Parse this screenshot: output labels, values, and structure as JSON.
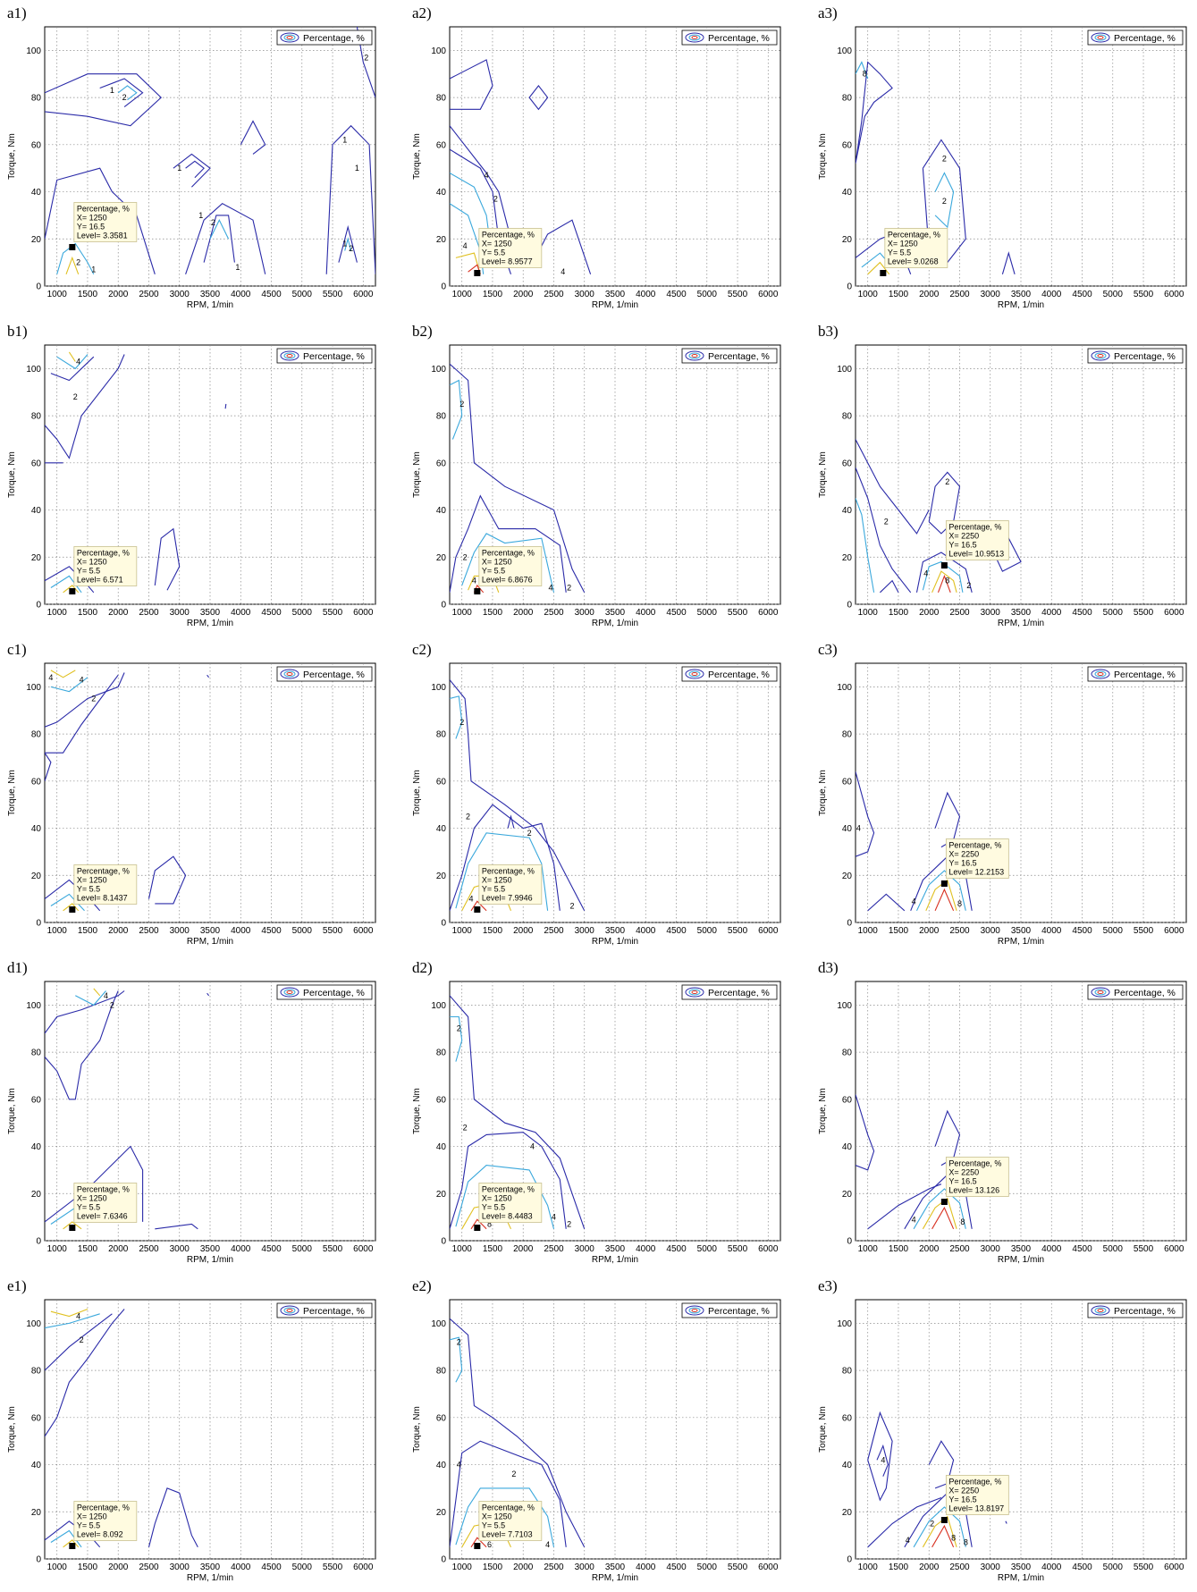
{
  "chart_data": [
    {
      "label": "a1)",
      "type": "contour",
      "legend": "Percentage, %",
      "xlabel": "RPM, 1/min",
      "ylabel": "Torque, Nm",
      "xlim": [
        800,
        6200
      ],
      "ylim": [
        0,
        110
      ],
      "xticks": [
        "1000",
        "1500",
        "2000",
        "2500",
        "3000",
        "3500",
        "4000",
        "4500",
        "5000",
        "5500",
        "6000"
      ],
      "yticks": [
        "0",
        "20",
        "40",
        "60",
        "80",
        "100"
      ],
      "datatip": {
        "title": "Percentage, %",
        "x": "X= 1250",
        "y": "Y= 16.5",
        "level": "Level= 3.3581",
        "xv": 1250,
        "yv": 16.5
      },
      "contour_labels": [
        {
          "t": "1",
          "x": 1900,
          "y": 83
        },
        {
          "t": "2",
          "x": 2100,
          "y": 80
        },
        {
          "t": "1",
          "x": 3000,
          "y": 50
        },
        {
          "t": "2",
          "x": 3550,
          "y": 27
        },
        {
          "t": "1",
          "x": 3350,
          "y": 30
        },
        {
          "t": "1",
          "x": 3950,
          "y": 8
        },
        {
          "t": "1",
          "x": 5700,
          "y": 62
        },
        {
          "t": "1",
          "x": 5900,
          "y": 50
        },
        {
          "t": "1",
          "x": 5700,
          "y": 18
        },
        {
          "t": "2",
          "x": 5800,
          "y": 16
        },
        {
          "t": "2",
          "x": 1350,
          "y": 10
        },
        {
          "t": "1",
          "x": 1600,
          "y": 7
        },
        {
          "t": "2",
          "x": 6050,
          "y": 97
        }
      ]
    },
    {
      "label": "a2)",
      "type": "contour",
      "legend": "Percentage, %",
      "xlabel": "RPM, 1/min",
      "ylabel": "Torque, Nm",
      "xlim": [
        800,
        6200
      ],
      "ylim": [
        0,
        110
      ],
      "xticks": [
        "1000",
        "1500",
        "2000",
        "2500",
        "3000",
        "3500",
        "4000",
        "4500",
        "5000",
        "5500",
        "6000"
      ],
      "yticks": [
        "0",
        "20",
        "40",
        "60",
        "80",
        "100"
      ],
      "datatip": {
        "title": "Percentage, %",
        "x": "X= 1250",
        "y": "Y= 5.5",
        "level": "Level= 8.9577",
        "xv": 1250,
        "yv": 5.5
      },
      "contour_labels": [
        {
          "t": "4",
          "x": 1400,
          "y": 47
        },
        {
          "t": "2",
          "x": 1550,
          "y": 37
        },
        {
          "t": "4",
          "x": 1050,
          "y": 17
        },
        {
          "t": "4",
          "x": 2650,
          "y": 6
        }
      ]
    },
    {
      "label": "a3)",
      "type": "contour",
      "legend": "Percentage, %",
      "xlabel": "RPM, 1/min",
      "ylabel": "Torque, Nm",
      "xlim": [
        800,
        6200
      ],
      "ylim": [
        0,
        110
      ],
      "xticks": [
        "1000",
        "1500",
        "2000",
        "2500",
        "3000",
        "3500",
        "4000",
        "4500",
        "5000",
        "5500",
        "6000"
      ],
      "yticks": [
        "0",
        "20",
        "40",
        "60",
        "80",
        "100"
      ],
      "datatip": {
        "title": "Percentage, %",
        "x": "X= 1250",
        "y": "Y= 5.5",
        "level": "Level= 9.0268",
        "xv": 1250,
        "yv": 5.5
      },
      "contour_labels": [
        {
          "t": "8",
          "x": 950,
          "y": 90
        },
        {
          "t": "2",
          "x": 2250,
          "y": 54
        },
        {
          "t": "2",
          "x": 2250,
          "y": 36
        }
      ]
    },
    {
      "label": "b1)",
      "type": "contour",
      "legend": "Percentage, %",
      "xlabel": "RPM, 1/min",
      "ylabel": "Torque, Nm",
      "xlim": [
        800,
        6200
      ],
      "ylim": [
        0,
        110
      ],
      "xticks": [
        "1000",
        "1500",
        "2000",
        "2500",
        "3000",
        "3500",
        "4000",
        "4500",
        "5000",
        "5500",
        "6000"
      ],
      "yticks": [
        "0",
        "20",
        "40",
        "60",
        "80",
        "100"
      ],
      "datatip": {
        "title": "Percentage, %",
        "x": "X= 1250",
        "y": "Y= 5.5",
        "level": "Level= 6.571",
        "xv": 1250,
        "yv": 5.5
      },
      "contour_labels": [
        {
          "t": "4",
          "x": 1350,
          "y": 103
        },
        {
          "t": "2",
          "x": 1300,
          "y": 88
        }
      ]
    },
    {
      "label": "b2)",
      "type": "contour",
      "legend": "Percentage, %",
      "xlabel": "RPM, 1/min",
      "ylabel": "Torque, Nm",
      "xlim": [
        800,
        6200
      ],
      "ylim": [
        0,
        110
      ],
      "xticks": [
        "1000",
        "1500",
        "2000",
        "2500",
        "3000",
        "3500",
        "4000",
        "4500",
        "5000",
        "5500",
        "6000"
      ],
      "yticks": [
        "0",
        "20",
        "40",
        "60",
        "80",
        "100"
      ],
      "datatip": {
        "title": "Percentage, %",
        "x": "X= 1250",
        "y": "Y= 5.5",
        "level": "Level= 6.8676",
        "xv": 1250,
        "yv": 5.5
      },
      "contour_labels": [
        {
          "t": "2",
          "x": 1000,
          "y": 85
        },
        {
          "t": "2",
          "x": 1050,
          "y": 20
        },
        {
          "t": "4",
          "x": 1200,
          "y": 10
        },
        {
          "t": "4",
          "x": 2450,
          "y": 7
        },
        {
          "t": "2",
          "x": 2750,
          "y": 7
        }
      ]
    },
    {
      "label": "b3)",
      "type": "contour",
      "legend": "Percentage, %",
      "xlabel": "RPM, 1/min",
      "ylabel": "Torque, Nm",
      "xlim": [
        800,
        6200
      ],
      "ylim": [
        0,
        110
      ],
      "xticks": [
        "1000",
        "1500",
        "2000",
        "2500",
        "3000",
        "3500",
        "4000",
        "4500",
        "5000",
        "5500",
        "6000"
      ],
      "yticks": [
        "0",
        "20",
        "40",
        "60",
        "80",
        "100"
      ],
      "datatip": {
        "title": "Percentage, %",
        "x": "X= 2250",
        "y": "Y= 16.5",
        "level": "Level= 10.9513",
        "xv": 2250,
        "yv": 16.5
      },
      "contour_labels": [
        {
          "t": "2",
          "x": 1300,
          "y": 35
        },
        {
          "t": "2",
          "x": 2300,
          "y": 52
        },
        {
          "t": "4",
          "x": 1950,
          "y": 13
        },
        {
          "t": "8",
          "x": 2300,
          "y": 10
        },
        {
          "t": "2",
          "x": 2650,
          "y": 8
        }
      ]
    },
    {
      "label": "c1)",
      "type": "contour",
      "legend": "Percentage, %",
      "xlabel": "RPM, 1/min",
      "ylabel": "Torque, Nm",
      "xlim": [
        800,
        6200
      ],
      "ylim": [
        0,
        110
      ],
      "xticks": [
        "1000",
        "1500",
        "2000",
        "2500",
        "3000",
        "3500",
        "4000",
        "4500",
        "5000",
        "5500",
        "6000"
      ],
      "yticks": [
        "0",
        "20",
        "40",
        "60",
        "80",
        "100"
      ],
      "datatip": {
        "title": "Percentage, %",
        "x": "X= 1250",
        "y": "Y= 5.5",
        "level": "Level= 8.1437",
        "xv": 1250,
        "yv": 5.5
      },
      "contour_labels": [
        {
          "t": "4",
          "x": 1400,
          "y": 103
        },
        {
          "t": "2",
          "x": 1600,
          "y": 95
        },
        {
          "t": "4",
          "x": 900,
          "y": 104
        }
      ]
    },
    {
      "label": "c2)",
      "type": "contour",
      "legend": "Percentage, %",
      "xlabel": "RPM, 1/min",
      "ylabel": "Torque, Nm",
      "xlim": [
        800,
        6200
      ],
      "ylim": [
        0,
        110
      ],
      "xticks": [
        "1000",
        "1500",
        "2000",
        "2500",
        "3000",
        "3500",
        "4000",
        "4500",
        "5000",
        "5500",
        "6000"
      ],
      "yticks": [
        "0",
        "20",
        "40",
        "60",
        "80",
        "100"
      ],
      "datatip": {
        "title": "Percentage, %",
        "x": "X= 1250",
        "y": "Y= 5.5",
        "level": "Level= 7.9946",
        "xv": 1250,
        "yv": 5.5
      },
      "contour_labels": [
        {
          "t": "2",
          "x": 1000,
          "y": 85
        },
        {
          "t": "2",
          "x": 1100,
          "y": 45
        },
        {
          "t": "2",
          "x": 2100,
          "y": 38
        },
        {
          "t": "4",
          "x": 1150,
          "y": 10
        },
        {
          "t": "2",
          "x": 2800,
          "y": 7
        }
      ]
    },
    {
      "label": "c3)",
      "type": "contour",
      "legend": "Percentage, %",
      "xlabel": "RPM, 1/min",
      "ylabel": "Torque, Nm",
      "xlim": [
        800,
        6200
      ],
      "ylim": [
        0,
        110
      ],
      "xticks": [
        "1000",
        "1500",
        "2000",
        "2500",
        "3000",
        "3500",
        "4000",
        "4500",
        "5000",
        "5500",
        "6000"
      ],
      "yticks": [
        "0",
        "20",
        "40",
        "60",
        "80",
        "100"
      ],
      "datatip": {
        "title": "Percentage, %",
        "x": "X= 2250",
        "y": "Y= 16.5",
        "level": "Level= 12.2153",
        "xv": 2250,
        "yv": 16.5
      },
      "contour_labels": [
        {
          "t": "4",
          "x": 850,
          "y": 40
        },
        {
          "t": "4",
          "x": 1750,
          "y": 9
        },
        {
          "t": "8",
          "x": 2500,
          "y": 8
        }
      ]
    },
    {
      "label": "d1)",
      "type": "contour",
      "legend": "Percentage, %",
      "xlabel": "RPM, 1/min",
      "ylabel": "Torque, Nm",
      "xlim": [
        800,
        6200
      ],
      "ylim": [
        0,
        110
      ],
      "xticks": [
        "1000",
        "1500",
        "2000",
        "2500",
        "3000",
        "3500",
        "4000",
        "4500",
        "5000",
        "5500",
        "6000"
      ],
      "yticks": [
        "0",
        "20",
        "40",
        "60",
        "80",
        "100"
      ],
      "datatip": {
        "title": "Percentage, %",
        "x": "X= 1250",
        "y": "Y= 5.5",
        "level": "Level= 7.6346",
        "xv": 1250,
        "yv": 5.5
      },
      "contour_labels": [
        {
          "t": "4",
          "x": 1800,
          "y": 104
        },
        {
          "t": "2",
          "x": 1900,
          "y": 100
        }
      ]
    },
    {
      "label": "d2)",
      "type": "contour",
      "legend": "Percentage, %",
      "xlabel": "RPM, 1/min",
      "ylabel": "Torque, Nm",
      "xlim": [
        800,
        6200
      ],
      "ylim": [
        0,
        110
      ],
      "xticks": [
        "1000",
        "1500",
        "2000",
        "2500",
        "3000",
        "3500",
        "4000",
        "4500",
        "5000",
        "5500",
        "6000"
      ],
      "yticks": [
        "0",
        "20",
        "40",
        "60",
        "80",
        "100"
      ],
      "datatip": {
        "title": "Percentage, %",
        "x": "X= 1250",
        "y": "Y= 5.5",
        "level": "Level= 8.4483",
        "xv": 1250,
        "yv": 5.5
      },
      "contour_labels": [
        {
          "t": "2",
          "x": 950,
          "y": 90
        },
        {
          "t": "2",
          "x": 1050,
          "y": 48
        },
        {
          "t": "4",
          "x": 2150,
          "y": 40
        },
        {
          "t": "4",
          "x": 2500,
          "y": 10
        },
        {
          "t": "2",
          "x": 2750,
          "y": 7
        },
        {
          "t": "8",
          "x": 1450,
          "y": 7
        }
      ]
    },
    {
      "label": "d3)",
      "type": "contour",
      "legend": "Percentage, %",
      "xlabel": "RPM, 1/min",
      "ylabel": "Torque, Nm",
      "xlim": [
        800,
        6200
      ],
      "ylim": [
        0,
        110
      ],
      "xticks": [
        "1000",
        "1500",
        "2000",
        "2500",
        "3000",
        "3500",
        "4000",
        "4500",
        "5000",
        "5500",
        "6000"
      ],
      "yticks": [
        "0",
        "20",
        "40",
        "60",
        "80",
        "100"
      ],
      "datatip": {
        "title": "Percentage, %",
        "x": "X= 2250",
        "y": "Y= 16.5",
        "level": "Level= 13.126",
        "xv": 2250,
        "yv": 16.5
      },
      "contour_labels": [
        {
          "t": "4",
          "x": 1750,
          "y": 9
        },
        {
          "t": "8",
          "x": 2550,
          "y": 8
        }
      ]
    },
    {
      "label": "e1)",
      "type": "contour",
      "legend": "Percentage, %",
      "xlabel": "RPM, 1/min",
      "ylabel": "Torque, Nm",
      "xlim": [
        800,
        6200
      ],
      "ylim": [
        0,
        110
      ],
      "xticks": [
        "1000",
        "1500",
        "2000",
        "2500",
        "3000",
        "3500",
        "4000",
        "4500",
        "5000",
        "5500",
        "6000"
      ],
      "yticks": [
        "0",
        "20",
        "40",
        "60",
        "80",
        "100"
      ],
      "datatip": {
        "title": "Percentage, %",
        "x": "X= 1250",
        "y": "Y= 5.5",
        "level": "Level= 8.092",
        "xv": 1250,
        "yv": 5.5
      },
      "contour_labels": [
        {
          "t": "4",
          "x": 1350,
          "y": 103
        },
        {
          "t": "2",
          "x": 1400,
          "y": 93
        }
      ]
    },
    {
      "label": "e2)",
      "type": "contour",
      "legend": "Percentage, %",
      "xlabel": "RPM, 1/min",
      "ylabel": "Torque, Nm",
      "xlim": [
        800,
        6200
      ],
      "ylim": [
        0,
        110
      ],
      "xticks": [
        "1000",
        "1500",
        "2000",
        "2500",
        "3000",
        "3500",
        "4000",
        "4500",
        "5000",
        "5500",
        "6000"
      ],
      "yticks": [
        "0",
        "20",
        "40",
        "60",
        "80",
        "100"
      ],
      "datatip": {
        "title": "Percentage, %",
        "x": "X= 1250",
        "y": "Y= 5.5",
        "level": "Level= 7.7103",
        "xv": 1250,
        "yv": 5.5
      },
      "contour_labels": [
        {
          "t": "2",
          "x": 950,
          "y": 92
        },
        {
          "t": "4",
          "x": 950,
          "y": 40
        },
        {
          "t": "2",
          "x": 1850,
          "y": 36
        },
        {
          "t": "4",
          "x": 2400,
          "y": 6
        },
        {
          "t": "6",
          "x": 1450,
          "y": 6
        }
      ]
    },
    {
      "label": "e3)",
      "type": "contour",
      "legend": "Percentage, %",
      "xlabel": "RPM, 1/min",
      "ylabel": "Torque, Nm",
      "xlim": [
        800,
        6200
      ],
      "ylim": [
        0,
        110
      ],
      "xticks": [
        "1000",
        "1500",
        "2000",
        "2500",
        "3000",
        "3500",
        "4000",
        "4500",
        "5000",
        "5500",
        "6000"
      ],
      "yticks": [
        "0",
        "20",
        "40",
        "60",
        "80",
        "100"
      ],
      "datatip": {
        "title": "Percentage, %",
        "x": "X= 2250",
        "y": "Y= 16.5",
        "level": "Level= 13.8197",
        "xv": 2250,
        "yv": 16.5
      },
      "contour_labels": [
        {
          "t": "4",
          "x": 1250,
          "y": 42
        },
        {
          "t": "4",
          "x": 1650,
          "y": 8
        },
        {
          "t": "2",
          "x": 2050,
          "y": 15
        },
        {
          "t": "8",
          "x": 2400,
          "y": 9
        },
        {
          "t": "8",
          "x": 2600,
          "y": 7
        }
      ]
    }
  ],
  "colors": {
    "outer": "#2a2aa8",
    "mid": "#3aa8dc",
    "inner": "#e0c020",
    "core": "#d83020",
    "datatip_bg": "#fffbe0",
    "grid": "#888888"
  }
}
